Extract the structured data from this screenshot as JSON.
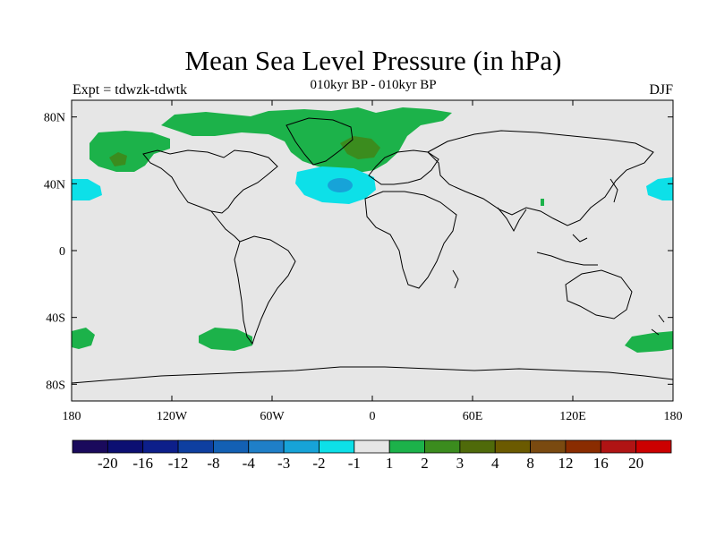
{
  "title": "Mean Sea Level Pressure (in hPa)",
  "subtitle": "010kyr BP - 010kyr BP",
  "expt_label": "Expt = tdwzk-tdwtk",
  "season": "DJF",
  "map": {
    "background_color": "#e6e6e6",
    "lon_range": [
      -180,
      180
    ],
    "lat_range": [
      -90,
      90
    ],
    "x_ticks": [
      "180",
      "120W",
      "60W",
      "0",
      "60E",
      "120E",
      "180"
    ],
    "y_ticks": [
      "80N",
      "40N",
      "0",
      "40S",
      "80S"
    ]
  },
  "colorbar": {
    "colors": [
      "#1a0a5c",
      "#0c0f72",
      "#0d1f8a",
      "#0e3fa0",
      "#1360b4",
      "#1f7fc8",
      "#17a3d8",
      "#0de0e8",
      "#e6e6e6",
      "#1cb24a",
      "#3b8c1e",
      "#4f6a0a",
      "#6b5a00",
      "#7a4a10",
      "#8a2c00",
      "#b01414",
      "#cc0000"
    ],
    "labels": [
      "-20",
      "-16",
      "-12",
      "-8",
      "-4",
      "-3",
      "-2",
      "-1",
      "1",
      "2",
      "3",
      "4",
      "8",
      "12",
      "16",
      "20"
    ]
  }
}
